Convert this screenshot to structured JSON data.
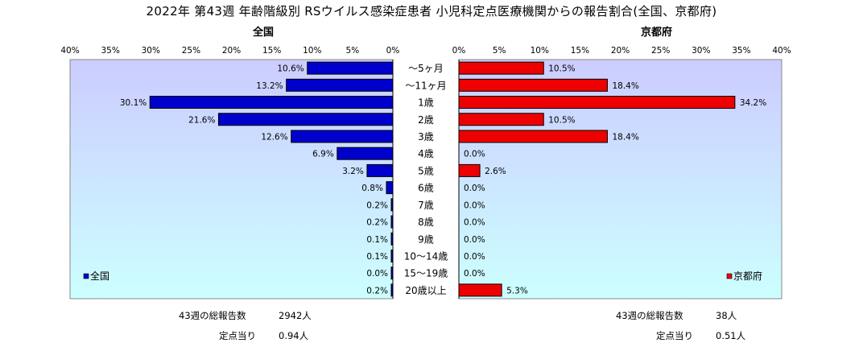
{
  "title": "2022年 第43週 年齢階級別 RSウイルス感染症患者 小児科定点医療機関からの報告割合(全国、京都府)",
  "subtitles": {
    "left": "全国",
    "right": "京都府"
  },
  "colors": {
    "national": "#0000cc",
    "kyoto": "#ee0000",
    "plot_top": "#ccccff",
    "plot_bottom": "#ccffff"
  },
  "chart_data": {
    "type": "bar",
    "orientation": "horizontal-butterfly",
    "categories": [
      "～5ヶ月",
      "～11ヶ月",
      "1歳",
      "2歳",
      "3歳",
      "4歳",
      "5歳",
      "6歳",
      "7歳",
      "8歳",
      "9歳",
      "10～14歳",
      "15～19歳",
      "20歳以上"
    ],
    "series": [
      {
        "name": "全国",
        "values": [
          10.6,
          13.2,
          30.1,
          21.6,
          12.6,
          6.9,
          3.2,
          0.8,
          0.2,
          0.2,
          0.1,
          0.1,
          0.0,
          0.2
        ],
        "labels": [
          "10.6%",
          "13.2%",
          "30.1%",
          "21.6%",
          "12.6%",
          "6.9%",
          "3.2%",
          "0.8%",
          "0.2%",
          "0.2%",
          "0.1%",
          "0.1%",
          "0.0%",
          "0.2%"
        ]
      },
      {
        "name": "京都府",
        "values": [
          10.5,
          18.4,
          34.2,
          10.5,
          18.4,
          0.0,
          2.6,
          0.0,
          0.0,
          0.0,
          0.0,
          0.0,
          0.0,
          5.3
        ],
        "labels": [
          "10.5%",
          "18.4%",
          "34.2%",
          "10.5%",
          "18.4%",
          "0.0%",
          "2.6%",
          "0.0%",
          "0.0%",
          "0.0%",
          "0.0%",
          "0.0%",
          "0.0%",
          "5.3%"
        ]
      }
    ],
    "xlim": [
      0,
      40
    ],
    "left_ticks": [
      "40%",
      "35%",
      "30%",
      "25%",
      "20%",
      "15%",
      "10%",
      "5%",
      "0%"
    ],
    "right_ticks": [
      "0%",
      "5%",
      "10%",
      "15%",
      "20%",
      "25%",
      "30%",
      "35%",
      "40%"
    ],
    "legend": {
      "left": "全国",
      "right": "京都府",
      "placement": "bottom-left / bottom-right"
    },
    "grid": false
  },
  "stats": {
    "national": {
      "total_label": "43週の総報告数",
      "total_value": "2942人",
      "per_label": "定点当り",
      "per_value": "0.94人"
    },
    "kyoto": {
      "total_label": "43週の総報告数",
      "total_value": "38人",
      "per_label": "定点当り",
      "per_value": "0.51人"
    }
  }
}
